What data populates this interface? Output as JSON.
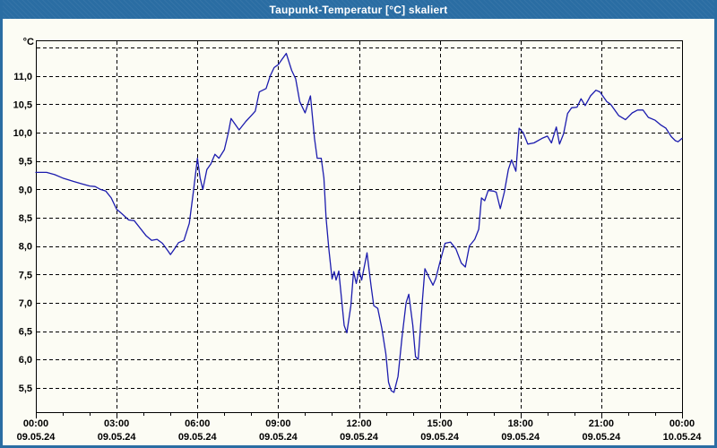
{
  "title": "Taupunkt-Temperatur [°C] skaliert",
  "colors": {
    "titlebar_bg": "#2A6DA3",
    "frame_border": "#2A6DA3",
    "page_bg": "#FCFCF4",
    "line": "#1C1CAE",
    "grid": "#000000",
    "axis": "#000000",
    "text": "#000000",
    "title_text": "#FFFFFF"
  },
  "chart_data": {
    "type": "line",
    "title": "Taupunkt-Temperatur [°C] skaliert",
    "unit_label": "°C",
    "xlabel": "",
    "ylabel": "°C",
    "grid": "dashed",
    "legend": "none",
    "ylim": [
      5.07,
      11.63
    ],
    "xlim_hours": [
      0,
      24
    ],
    "y_ticks": [
      {
        "value": 11.5,
        "label": ""
      },
      {
        "value": 11.0,
        "label": "11,0"
      },
      {
        "value": 10.5,
        "label": "10,5"
      },
      {
        "value": 10.0,
        "label": "10,0"
      },
      {
        "value": 9.5,
        "label": "9,5"
      },
      {
        "value": 9.0,
        "label": "9,0"
      },
      {
        "value": 8.5,
        "label": "8,5"
      },
      {
        "value": 8.0,
        "label": "8,0"
      },
      {
        "value": 7.5,
        "label": "7,5"
      },
      {
        "value": 7.0,
        "label": "7,0"
      },
      {
        "value": 6.5,
        "label": "6,5"
      },
      {
        "value": 6.0,
        "label": "6,0"
      },
      {
        "value": 5.5,
        "label": "5,5"
      }
    ],
    "x_ticks": [
      {
        "hour": 0,
        "time": "00:00",
        "date": "09.05.24"
      },
      {
        "hour": 3,
        "time": "03:00",
        "date": "09.05.24"
      },
      {
        "hour": 6,
        "time": "06:00",
        "date": "09.05.24"
      },
      {
        "hour": 9,
        "time": "09:00",
        "date": "09.05.24"
      },
      {
        "hour": 12,
        "time": "12:00",
        "date": "09.05.24"
      },
      {
        "hour": 15,
        "time": "15:00",
        "date": "09.05.24"
      },
      {
        "hour": 18,
        "time": "18:00",
        "date": "09.05.24"
      },
      {
        "hour": 21,
        "time": "21:00",
        "date": "09.05.24"
      },
      {
        "hour": 24,
        "time": "00:00",
        "date": "10.05.24"
      }
    ],
    "minor_tick_every_hours": 1,
    "series": [
      {
        "name": "Taupunkt-Temperatur",
        "color": "#1C1CAE",
        "points": [
          [
            0.0,
            9.3
          ],
          [
            0.4,
            9.3
          ],
          [
            0.7,
            9.26
          ],
          [
            1.0,
            9.2
          ],
          [
            1.4,
            9.14
          ],
          [
            1.7,
            9.1
          ],
          [
            2.0,
            9.06
          ],
          [
            2.2,
            9.05
          ],
          [
            2.4,
            9.0
          ],
          [
            2.6,
            8.97
          ],
          [
            2.8,
            8.85
          ],
          [
            3.0,
            8.65
          ],
          [
            3.2,
            8.57
          ],
          [
            3.45,
            8.46
          ],
          [
            3.65,
            8.45
          ],
          [
            3.9,
            8.3
          ],
          [
            4.1,
            8.18
          ],
          [
            4.3,
            8.1
          ],
          [
            4.5,
            8.12
          ],
          [
            4.7,
            8.05
          ],
          [
            4.9,
            7.92
          ],
          [
            5.0,
            7.85
          ],
          [
            5.15,
            7.95
          ],
          [
            5.3,
            8.06
          ],
          [
            5.5,
            8.1
          ],
          [
            5.7,
            8.4
          ],
          [
            5.85,
            8.95
          ],
          [
            6.0,
            9.55
          ],
          [
            6.1,
            9.2
          ],
          [
            6.2,
            9.0
          ],
          [
            6.35,
            9.35
          ],
          [
            6.5,
            9.45
          ],
          [
            6.65,
            9.62
          ],
          [
            6.8,
            9.55
          ],
          [
            7.0,
            9.7
          ],
          [
            7.15,
            10.0
          ],
          [
            7.25,
            10.25
          ],
          [
            7.4,
            10.15
          ],
          [
            7.55,
            10.05
          ],
          [
            7.8,
            10.2
          ],
          [
            8.0,
            10.3
          ],
          [
            8.15,
            10.38
          ],
          [
            8.3,
            10.72
          ],
          [
            8.55,
            10.78
          ],
          [
            8.7,
            11.0
          ],
          [
            8.85,
            11.15
          ],
          [
            9.0,
            11.2
          ],
          [
            9.15,
            11.3
          ],
          [
            9.3,
            11.4
          ],
          [
            9.5,
            11.1
          ],
          [
            9.65,
            10.95
          ],
          [
            9.8,
            10.55
          ],
          [
            10.0,
            10.35
          ],
          [
            10.2,
            10.65
          ],
          [
            10.35,
            9.9
          ],
          [
            10.45,
            9.55
          ],
          [
            10.6,
            9.55
          ],
          [
            10.7,
            9.2
          ],
          [
            10.78,
            8.5
          ],
          [
            10.88,
            7.95
          ],
          [
            11.0,
            7.42
          ],
          [
            11.08,
            7.55
          ],
          [
            11.15,
            7.4
          ],
          [
            11.25,
            7.56
          ],
          [
            11.35,
            7.08
          ],
          [
            11.45,
            6.6
          ],
          [
            11.55,
            6.47
          ],
          [
            11.7,
            6.95
          ],
          [
            11.8,
            7.55
          ],
          [
            11.9,
            7.34
          ],
          [
            12.0,
            7.58
          ],
          [
            12.1,
            7.4
          ],
          [
            12.3,
            7.88
          ],
          [
            12.45,
            7.3
          ],
          [
            12.55,
            6.95
          ],
          [
            12.7,
            6.9
          ],
          [
            12.85,
            6.55
          ],
          [
            13.0,
            6.1
          ],
          [
            13.1,
            5.6
          ],
          [
            13.2,
            5.45
          ],
          [
            13.3,
            5.42
          ],
          [
            13.45,
            5.7
          ],
          [
            13.6,
            6.4
          ],
          [
            13.75,
            7.0
          ],
          [
            13.85,
            7.15
          ],
          [
            14.0,
            6.6
          ],
          [
            14.1,
            6.05
          ],
          [
            14.2,
            6.0
          ],
          [
            14.35,
            7.0
          ],
          [
            14.45,
            7.6
          ],
          [
            14.6,
            7.45
          ],
          [
            14.75,
            7.31
          ],
          [
            14.85,
            7.42
          ],
          [
            15.0,
            7.7
          ],
          [
            15.2,
            8.05
          ],
          [
            15.4,
            8.07
          ],
          [
            15.6,
            7.95
          ],
          [
            15.8,
            7.7
          ],
          [
            15.95,
            7.63
          ],
          [
            16.1,
            8.0
          ],
          [
            16.3,
            8.12
          ],
          [
            16.45,
            8.3
          ],
          [
            16.55,
            8.85
          ],
          [
            16.67,
            8.8
          ],
          [
            16.8,
            8.98
          ],
          [
            17.0,
            8.97
          ],
          [
            17.1,
            8.95
          ],
          [
            17.25,
            8.66
          ],
          [
            17.4,
            8.95
          ],
          [
            17.55,
            9.35
          ],
          [
            17.67,
            9.52
          ],
          [
            17.83,
            9.32
          ],
          [
            17.95,
            10.08
          ],
          [
            18.1,
            10.0
          ],
          [
            18.27,
            9.8
          ],
          [
            18.5,
            9.82
          ],
          [
            18.8,
            9.9
          ],
          [
            19.0,
            9.94
          ],
          [
            19.15,
            9.82
          ],
          [
            19.33,
            10.1
          ],
          [
            19.45,
            9.8
          ],
          [
            19.6,
            9.98
          ],
          [
            19.75,
            10.34
          ],
          [
            19.9,
            10.44
          ],
          [
            20.1,
            10.45
          ],
          [
            20.25,
            10.6
          ],
          [
            20.4,
            10.48
          ],
          [
            20.6,
            10.65
          ],
          [
            20.8,
            10.75
          ],
          [
            20.95,
            10.72
          ],
          [
            21.2,
            10.55
          ],
          [
            21.35,
            10.5
          ],
          [
            21.65,
            10.3
          ],
          [
            21.9,
            10.23
          ],
          [
            22.15,
            10.35
          ],
          [
            22.35,
            10.4
          ],
          [
            22.55,
            10.4
          ],
          [
            22.75,
            10.27
          ],
          [
            23.0,
            10.22
          ],
          [
            23.2,
            10.14
          ],
          [
            23.4,
            10.08
          ],
          [
            23.6,
            9.93
          ],
          [
            23.75,
            9.86
          ],
          [
            23.85,
            9.84
          ],
          [
            24.0,
            9.9
          ]
        ]
      }
    ]
  }
}
